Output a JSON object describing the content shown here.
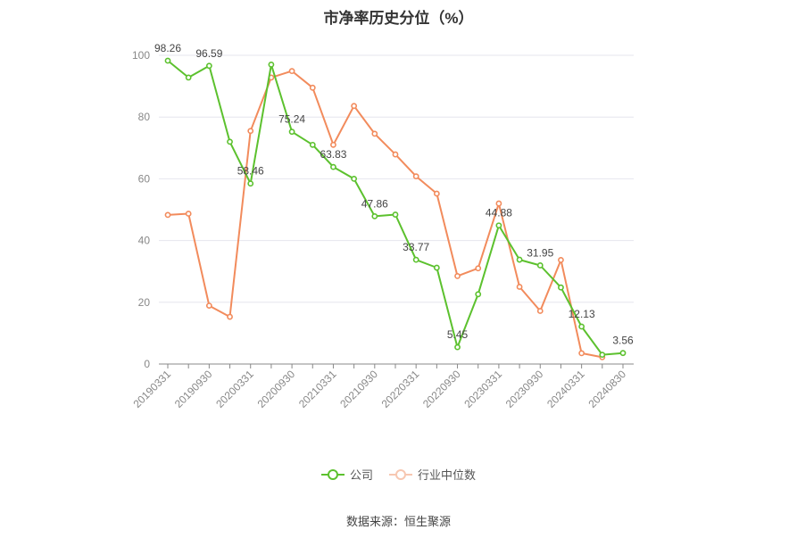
{
  "title": "市净率历史分位（%）",
  "source": "数据来源：恒生聚源",
  "chart_data": {
    "type": "line",
    "title": "市净率历史分位（%）",
    "ylim": [
      0,
      100
    ],
    "yticks": [
      0,
      20,
      40,
      60,
      80,
      100
    ],
    "grid": true,
    "legend_position": "bottom",
    "xtick_labels": [
      "20190331",
      "20190930",
      "20200331",
      "20200930",
      "20210331",
      "20210930",
      "20220331",
      "20220930",
      "20230331",
      "20230930",
      "20240331",
      "20240830"
    ],
    "xtick_positions": [
      0,
      2,
      4,
      6,
      8,
      10,
      12,
      14,
      16,
      18,
      20,
      22
    ],
    "series": [
      {
        "name": "公司",
        "color": "#5cc12e",
        "values": [
          98.26,
          92.8,
          96.59,
          72.0,
          58.46,
          97.0,
          75.24,
          71.0,
          63.83,
          60.0,
          47.86,
          48.4,
          33.77,
          31.2,
          5.45,
          22.6,
          44.88,
          33.8,
          31.95,
          24.8,
          12.13,
          3.0,
          3.56
        ],
        "labeled_points": [
          {
            "index": 0,
            "label": "98.26"
          },
          {
            "index": 2,
            "label": "96.59"
          },
          {
            "index": 4,
            "label": "58.46"
          },
          {
            "index": 6,
            "label": "75.24"
          },
          {
            "index": 8,
            "label": "63.83"
          },
          {
            "index": 10,
            "label": "47.86"
          },
          {
            "index": 12,
            "label": "33.77"
          },
          {
            "index": 14,
            "label": "5.45"
          },
          {
            "index": 16,
            "label": "44.88"
          },
          {
            "index": 18,
            "label": "31.95"
          },
          {
            "index": 20,
            "label": "12.13"
          },
          {
            "index": 22,
            "label": "3.56"
          }
        ]
      },
      {
        "name": "行业中位数",
        "color": "#f28b5c",
        "values": [
          48.3,
          48.7,
          18.9,
          15.3,
          75.5,
          92.8,
          94.9,
          89.5,
          71.0,
          83.6,
          74.6,
          67.9,
          60.8,
          55.2,
          28.5,
          31.0,
          52.0,
          25.0,
          17.2,
          33.7,
          3.5,
          2.2,
          null
        ]
      }
    ]
  }
}
